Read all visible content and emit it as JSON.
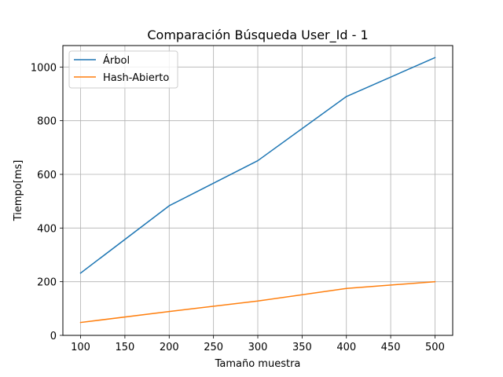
{
  "chart_data": {
    "type": "line",
    "title": "Comparación Búsqueda User_Id - 1",
    "xlabel": "Tamaño muestra",
    "ylabel": "Tiempo[ms]",
    "x": [
      100,
      200,
      300,
      400,
      500
    ],
    "xlim": [
      80,
      520
    ],
    "ylim": [
      0,
      1080
    ],
    "xticks": [
      100,
      150,
      200,
      250,
      300,
      350,
      400,
      450,
      500
    ],
    "yticks": [
      0,
      200,
      400,
      600,
      800,
      1000
    ],
    "grid": true,
    "legend_position": "top-left",
    "series": [
      {
        "name": "Árbol",
        "color": "#1f77b4",
        "values": [
          232,
          483,
          651,
          890,
          1035
        ]
      },
      {
        "name": "Hash-Abierto",
        "color": "#ff7f0e",
        "values": [
          48,
          89,
          128,
          175,
          200
        ]
      }
    ]
  }
}
